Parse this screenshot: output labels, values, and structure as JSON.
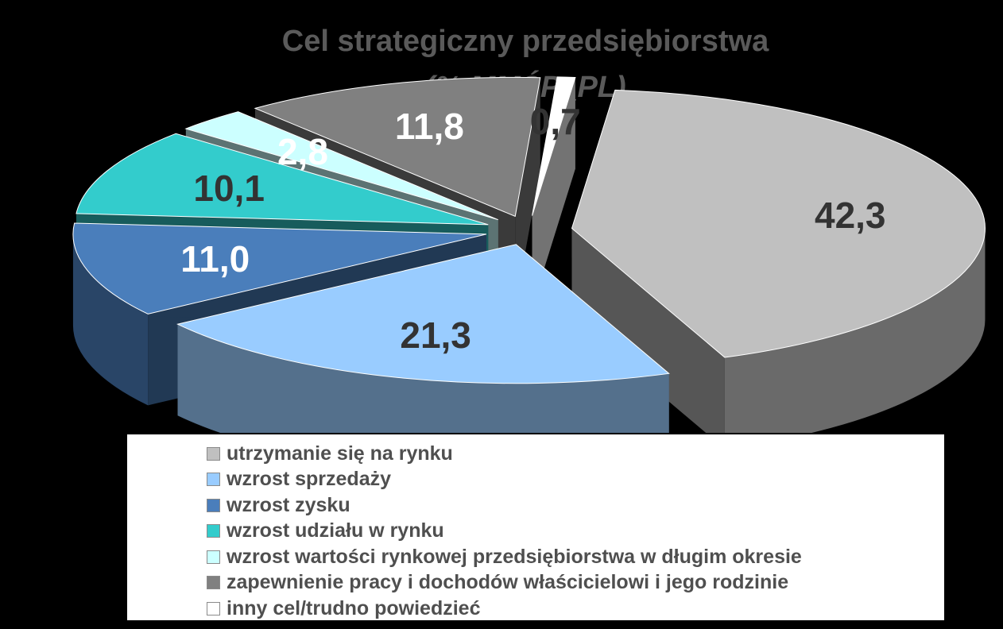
{
  "chart_data": {
    "type": "pie",
    "title": "Cel strategiczny przedsiębiorstwa",
    "subtitle": "(% MMŚP_PL)",
    "unit": "%",
    "slices": [
      {
        "name": "utrzymanie się na rynku",
        "value": 42.3,
        "label": "42,3",
        "color": "#c0c0c0",
        "label_color": "#333333"
      },
      {
        "name": "wzrost sprzedaży",
        "value": 21.3,
        "label": "21,3",
        "color": "#99ccff",
        "label_color": "#333333"
      },
      {
        "name": "wzrost zysku",
        "value": 11.0,
        "label": "11,0",
        "color": "#4a7ebb",
        "label_color": "#ffffff"
      },
      {
        "name": "wzrost udziału w rynku",
        "value": 10.1,
        "label": "10,1",
        "color": "#33cccc",
        "label_color": "#333333"
      },
      {
        "name": "wzrost wartości rynkowej przedsiębiorstwa w długim okresie",
        "value": 2.8,
        "label": "2,8",
        "color": "#ccffff",
        "label_color": "#ffffff"
      },
      {
        "name": "zapewnienie pracy i dochodów właścicielowi i jego rodzinie",
        "value": 11.8,
        "label": "11,8",
        "color": "#808080",
        "label_color": "#ffffff"
      },
      {
        "name": "inny cel/trudno powiedzieć",
        "value": 0.7,
        "label": "0,7",
        "color": "#ffffff",
        "label_color": "#333333"
      }
    ],
    "legend_position": "bottom"
  }
}
